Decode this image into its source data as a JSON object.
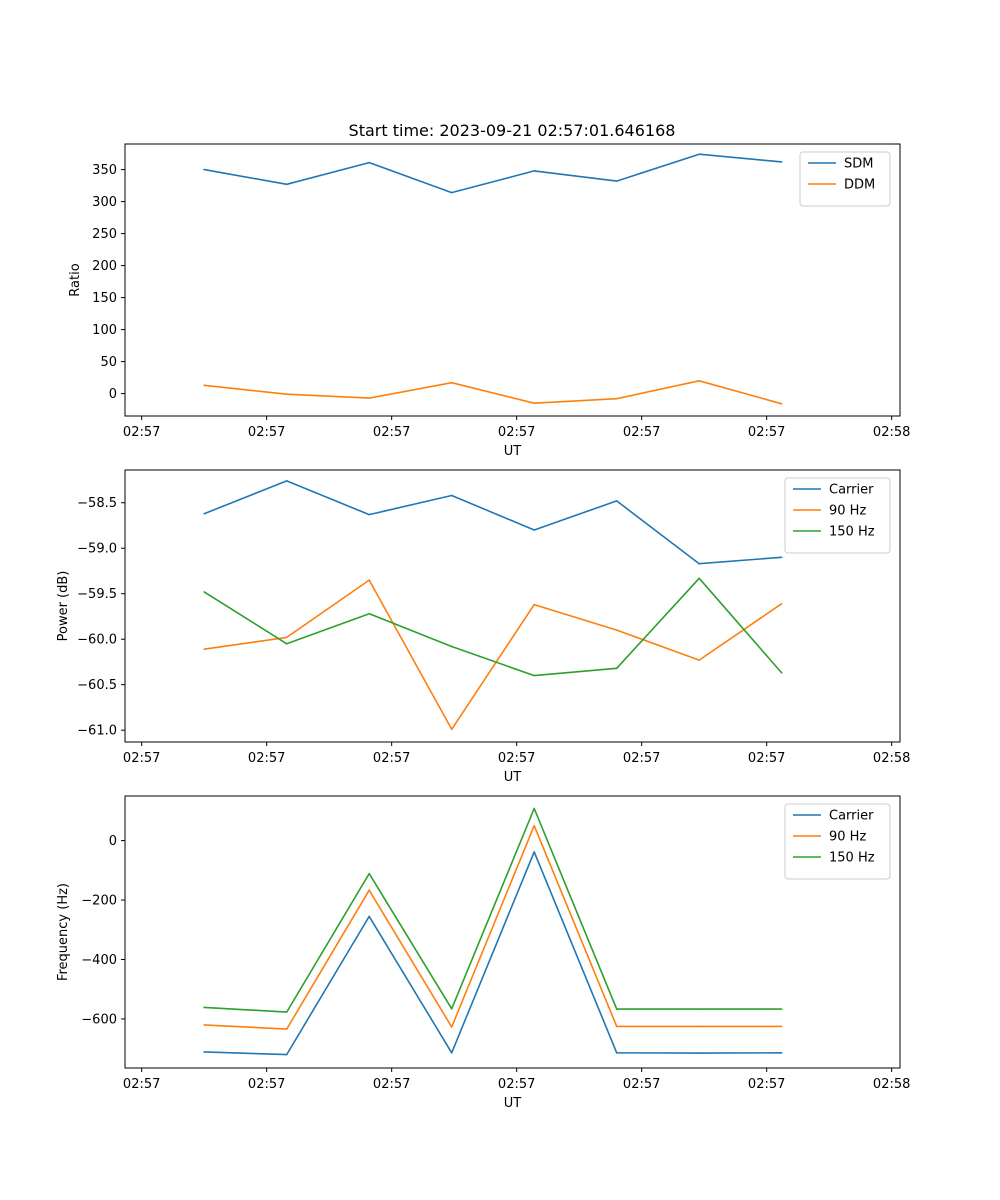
{
  "figure_title": "Start time: 2023-09-21 02:57:01.646168",
  "chart_data": [
    {
      "type": "line",
      "name": "ratio",
      "title": "Start time: 2023-09-21 02:57:01.646168",
      "xlabel": "UT",
      "ylabel": "Ratio",
      "xlim": [
        -0.2,
        9.1
      ],
      "ylim": [
        -35,
        390
      ],
      "x_ticks": [
        0,
        1.5,
        3,
        4.5,
        6,
        7.5,
        9
      ],
      "x_tick_labels": [
        "02:57",
        "02:57",
        "02:57",
        "02:57",
        "02:57",
        "02:57",
        "02:58"
      ],
      "y_ticks": [
        0,
        50,
        100,
        150,
        200,
        250,
        300,
        350
      ],
      "y_tick_labels": [
        "0",
        "50",
        "100",
        "150",
        "200",
        "250",
        "300",
        "350"
      ],
      "legend_position": "top-right",
      "x": [
        0.75,
        1.74,
        2.73,
        3.72,
        4.71,
        5.7,
        6.69,
        7.68
      ],
      "series": [
        {
          "name": "SDM",
          "color": "#1f77b4",
          "values": [
            350,
            327,
            361,
            314,
            348,
            332,
            374,
            362
          ]
        },
        {
          "name": "DDM",
          "color": "#ff7f0e",
          "values": [
            13,
            -1,
            -7,
            17,
            -15,
            -8,
            20,
            -16
          ]
        }
      ]
    },
    {
      "type": "line",
      "name": "power",
      "title": "",
      "xlabel": "UT",
      "ylabel": "Power (dB)",
      "xlim": [
        -0.2,
        9.1
      ],
      "ylim": [
        -61.13,
        -58.14
      ],
      "x_ticks": [
        0,
        1.5,
        3,
        4.5,
        6,
        7.5,
        9
      ],
      "x_tick_labels": [
        "02:57",
        "02:57",
        "02:57",
        "02:57",
        "02:57",
        "02:57",
        "02:58"
      ],
      "y_ticks": [
        -58.5,
        -59.0,
        -59.5,
        -60.0,
        -60.5,
        -61.0
      ],
      "y_tick_labels": [
        "−58.5",
        "−59.0",
        "−59.5",
        "−60.0",
        "−60.5",
        "−61.0"
      ],
      "legend_position": "top-right",
      "x": [
        0.75,
        1.74,
        2.73,
        3.72,
        4.71,
        5.7,
        6.69,
        7.68
      ],
      "series": [
        {
          "name": "Carrier",
          "color": "#1f77b4",
          "values": [
            -58.62,
            -58.26,
            -58.63,
            -58.42,
            -58.8,
            -58.48,
            -59.17,
            -59.1
          ]
        },
        {
          "name": "90 Hz",
          "color": "#ff7f0e",
          "values": [
            -60.11,
            -59.98,
            -59.35,
            -60.99,
            -59.62,
            -59.9,
            -60.23,
            -59.61
          ]
        },
        {
          "name": "150 Hz",
          "color": "#2ca02c",
          "values": [
            -59.48,
            -60.05,
            -59.72,
            -60.08,
            -60.4,
            -60.32,
            -59.33,
            -60.37
          ]
        }
      ]
    },
    {
      "type": "line",
      "name": "frequency",
      "title": "",
      "xlabel": "UT",
      "ylabel": "Frequency (Hz)",
      "xlim": [
        -0.2,
        9.1
      ],
      "ylim": [
        -765,
        150
      ],
      "x_ticks": [
        0,
        1.5,
        3,
        4.5,
        6,
        7.5,
        9
      ],
      "x_tick_labels": [
        "02:57",
        "02:57",
        "02:57",
        "02:57",
        "02:57",
        "02:57",
        "02:58"
      ],
      "y_ticks": [
        0,
        -200,
        -400,
        -600
      ],
      "y_tick_labels": [
        "0",
        "−200",
        "−400",
        "−600"
      ],
      "legend_position": "top-right",
      "x": [
        0.75,
        1.74,
        2.73,
        3.72,
        4.71,
        5.7,
        6.69,
        7.68
      ],
      "series": [
        {
          "name": "Carrier",
          "color": "#1f77b4",
          "values": [
            -711,
            -720,
            -255,
            -714,
            -38,
            -714,
            -715,
            -714
          ]
        },
        {
          "name": "90 Hz",
          "color": "#ff7f0e",
          "values": [
            -620,
            -634,
            -167,
            -627,
            50,
            -625,
            -625,
            -625
          ]
        },
        {
          "name": "150 Hz",
          "color": "#2ca02c",
          "values": [
            -561,
            -577,
            -111,
            -566,
            108,
            -567,
            -567,
            -567
          ]
        }
      ]
    }
  ]
}
